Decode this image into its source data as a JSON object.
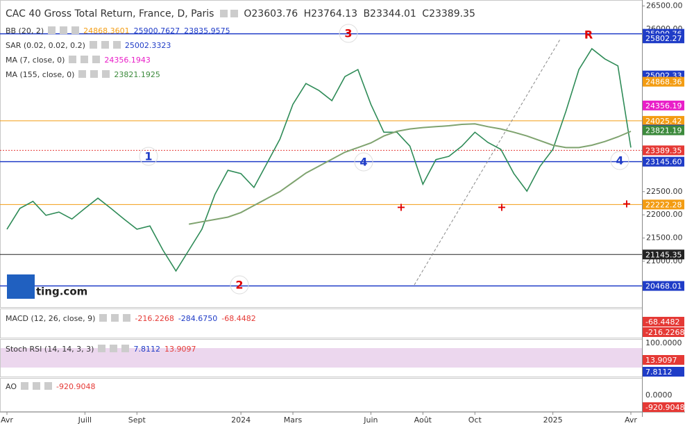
{
  "header": {
    "title": "CAC 40 Gross Total Return, France, D, Paris",
    "open": "O23603.76",
    "high": "H23764.13",
    "low": "B23344.01",
    "close": "C23389.35"
  },
  "legends": [
    {
      "name": "BB (20, 2)",
      "items": [
        {
          "text": "24868.3601",
          "color": "#f39c12"
        },
        {
          "text": "25900.7627",
          "color": "#1f3cc7"
        },
        {
          "text": "23835.9575",
          "color": "#1f3cc7"
        }
      ]
    },
    {
      "name": "SAR (0.02, 0.02, 0.2)",
      "items": [
        {
          "text": "25002.3323",
          "color": "#1f3cc7"
        }
      ]
    },
    {
      "name": "MA (7, close, 0)",
      "items": [
        {
          "text": "24356.1943",
          "color": "#e91ec8"
        }
      ]
    },
    {
      "name": "MA (155, close, 0)",
      "items": [
        {
          "text": "23821.1925",
          "color": "#3c8a3c"
        }
      ]
    }
  ],
  "panes": [
    {
      "name": "MACD (12, 26, close, 9)",
      "items": [
        {
          "text": "-216.2268",
          "color": "#e53935"
        },
        {
          "text": "-284.6750",
          "color": "#1f3cc7"
        },
        {
          "text": "-68.4482",
          "color": "#e53935"
        }
      ],
      "axis": [
        {
          "text": "-68.4482",
          "color": "#e53935"
        },
        {
          "text": "-216.2268",
          "color": "#e53935"
        }
      ]
    },
    {
      "name": "Stoch RSI (14, 14, 3, 3)",
      "items": [
        {
          "text": "7.8112",
          "color": "#1f3cc7"
        },
        {
          "text": "13.9097",
          "color": "#e53935"
        }
      ],
      "axis": [
        {
          "text": "100.0000",
          "color": null
        },
        {
          "text": "13.9097",
          "color": "#e53935"
        },
        {
          "text": "7.8112",
          "color": "#1f3cc7"
        }
      ]
    },
    {
      "name": "AO",
      "items": [
        {
          "text": "-920.9048",
          "color": "#e53935"
        }
      ],
      "axis": [
        {
          "text": "0.0000",
          "color": null
        },
        {
          "text": "-920.9048",
          "color": "#e53935"
        }
      ]
    }
  ],
  "logo": "ting.com",
  "annotations": [
    {
      "text": "1",
      "color": "#1f3cc7"
    },
    {
      "text": "2",
      "color": "#e00000"
    },
    {
      "text": "3",
      "color": "#e00000"
    },
    {
      "text": "4",
      "color": "#1f3cc7"
    },
    {
      "text": "4",
      "color": "#1f3cc7"
    },
    {
      "text": "R",
      "color": "#e00000"
    },
    {
      "text": "+",
      "color": "#e00000"
    },
    {
      "text": "+",
      "color": "#e00000"
    },
    {
      "text": "+",
      "color": "#e00000"
    }
  ],
  "chart_data": {
    "type": "line",
    "categories": [
      "Avr",
      null,
      null,
      null,
      null,
      null,
      "Juill",
      null,
      null,
      null,
      "Sept",
      null,
      null,
      null,
      null,
      null,
      null,
      null,
      "2024",
      null,
      null,
      null,
      "Mars",
      null,
      null,
      null,
      null,
      null,
      "Juin",
      null,
      null,
      null,
      "Août",
      null,
      null,
      null,
      "Oct",
      null,
      null,
      null,
      null,
      null,
      "2025",
      null,
      null,
      null,
      null,
      null,
      "Avr"
    ],
    "series": [
      {
        "name": "Close",
        "color": "#2e8b57",
        "values": [
          21690,
          22140,
          22290,
          21990,
          22060,
          21910,
          22140,
          22360,
          22140,
          21910,
          21690,
          21760,
          21240,
          20790,
          21240,
          21690,
          22440,
          22960,
          22890,
          22590,
          23110,
          23630,
          24380,
          24830,
          24680,
          24460,
          24980,
          25130,
          24380,
          23780,
          23780,
          23480,
          22660,
          23190,
          23260,
          23480,
          23780,
          23560,
          23410,
          22890,
          22510,
          23040,
          23410,
          24230,
          25130,
          25580,
          25360,
          25210,
          23450
        ]
      },
      {
        "name": "MA 155",
        "color": "#7fa36f",
        "values": [
          null,
          null,
          null,
          null,
          null,
          null,
          null,
          null,
          null,
          null,
          null,
          null,
          null,
          null,
          21800,
          21850,
          21900,
          21950,
          22050,
          22200,
          22350,
          22500,
          22700,
          22900,
          23050,
          23200,
          23350,
          23450,
          23550,
          23700,
          23800,
          23850,
          23880,
          23900,
          23920,
          23950,
          23960,
          23900,
          23850,
          23780,
          23700,
          23600,
          23500,
          23450,
          23450,
          23500,
          23580,
          23680,
          23800
        ]
      }
    ],
    "ylim": [
      20042,
      26629
    ],
    "yticks": [
      {
        "value": 26500,
        "label": "26500.00"
      },
      {
        "value": 26000,
        "label": "26000.00"
      },
      {
        "value": 22500,
        "label": "22500.00"
      },
      {
        "value": 22000,
        "label": "22000.00"
      },
      {
        "value": 21500,
        "label": "21500.00"
      },
      {
        "value": 21000,
        "label": "21000.00"
      }
    ],
    "levels": [
      {
        "value": 25900.76,
        "label": "25900.76",
        "color": "#1f3cc7",
        "line": true
      },
      {
        "value": 25802.27,
        "label": "25802.27",
        "color": "#1f3cc7",
        "line": false
      },
      {
        "value": 25002.33,
        "label": "25002.33",
        "color": "#1f3cc7",
        "line": false
      },
      {
        "value": 24868.36,
        "label": "24868.36",
        "color": "#f39c12",
        "line": false
      },
      {
        "value": 24356.19,
        "label": "24356.19",
        "color": "#e91ec8",
        "line": false
      },
      {
        "value": 24025.42,
        "label": "24025.42",
        "color": "#f39c12",
        "line": true
      },
      {
        "value": 23835.96,
        "label": "23835.96",
        "color": "#1f3cc7",
        "line": false
      },
      {
        "value": 23821.19,
        "label": "23821.19",
        "color": "#3c8a3c",
        "line": false
      },
      {
        "value": 23389.35,
        "label": "23389.35",
        "color": "#e53935",
        "line": true
      },
      {
        "value": 23145.6,
        "label": "23145.60",
        "color": "#1f3cc7",
        "line": true
      },
      {
        "value": 22222.28,
        "label": "22222.28",
        "color": "#f39c12",
        "line": true
      },
      {
        "value": 21145.35,
        "label": "21145.35",
        "color": "#222222",
        "line": true
      },
      {
        "value": 20468.01,
        "label": "20468.01",
        "color": "#1f3cc7",
        "line": true
      }
    ]
  }
}
